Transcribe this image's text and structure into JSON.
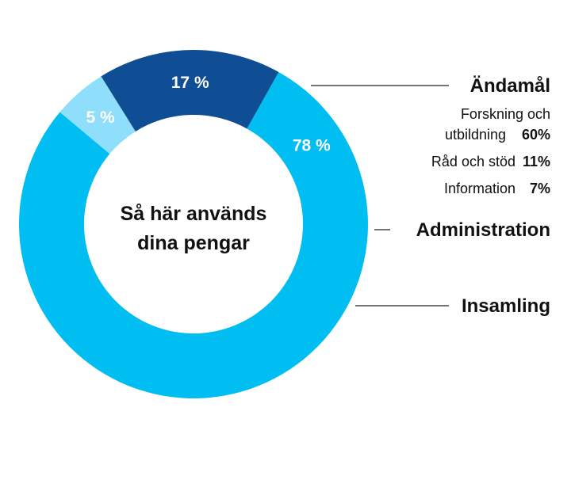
{
  "chart_data": {
    "type": "pie",
    "title": "Så här används dina pengar",
    "title_lines": [
      "Så här används",
      "dina pengar"
    ],
    "unit": "%",
    "slices": [
      {
        "name": "Ändamål",
        "value": 78,
        "label": "78 %",
        "color": "#00BDF2"
      },
      {
        "name": "Administration",
        "value": 5,
        "label": "5 %",
        "color": "#8FDFFC"
      },
      {
        "name": "Insamling",
        "value": 17,
        "label": "17 %",
        "color": "#0F4E94"
      }
    ],
    "breakdown": {
      "parent": "Ändamål",
      "items": [
        {
          "name_lines": [
            "Forskning och",
            "utbildning"
          ],
          "value": 60,
          "label": "60%"
        },
        {
          "name_lines": [
            "Råd och stöd"
          ],
          "value": 11,
          "label": "11%"
        },
        {
          "name_lines": [
            "Information"
          ],
          "value": 7,
          "label": "7%"
        }
      ]
    }
  }
}
